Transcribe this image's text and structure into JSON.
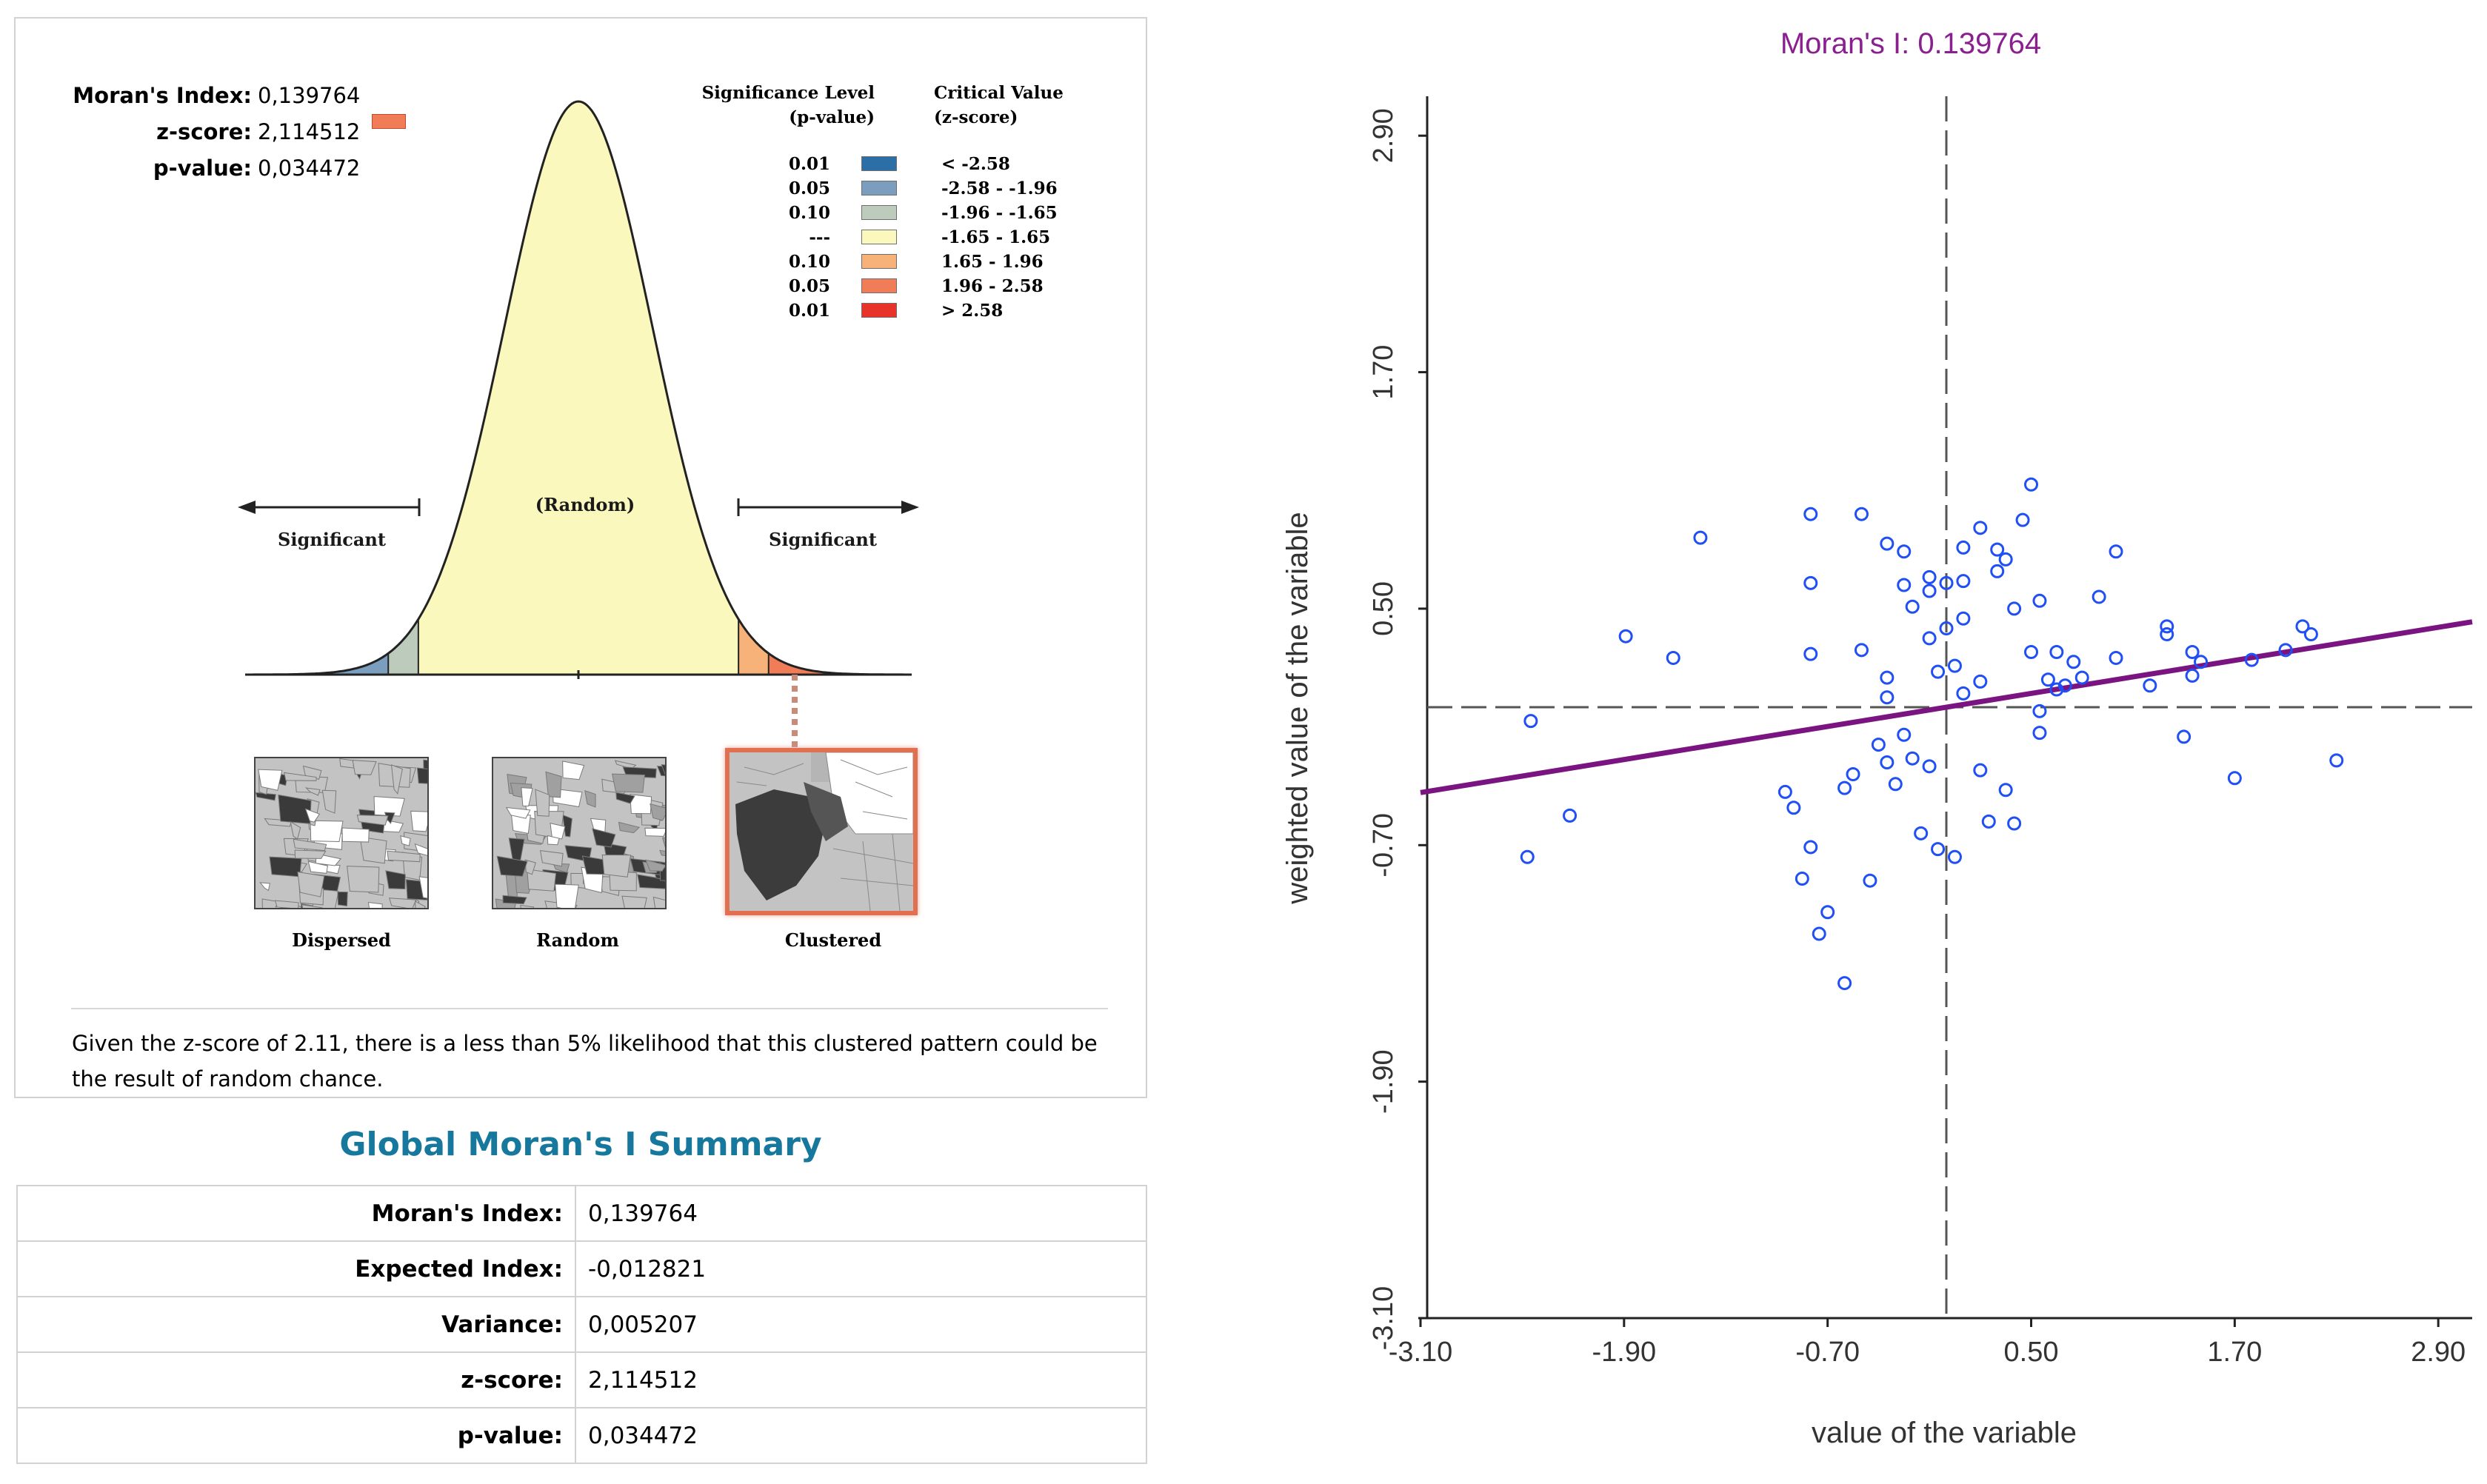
{
  "report": {
    "stats": [
      {
        "label": "Moran's Index:",
        "value": "0,139764"
      },
      {
        "label": "z-score:",
        "value": "2,114512"
      },
      {
        "label": "p-value:",
        "value": "0,034472"
      }
    ],
    "zscore_marker_color": "#f07d57",
    "legend": {
      "significance_header_1": "Significance Level",
      "significance_header_2": "(p-value)",
      "critical_header_1": "Critical Value",
      "critical_header_2": "(z-score)",
      "rows": [
        {
          "p": "0.01",
          "z": "< -2.58",
          "color": "#2c6fa6"
        },
        {
          "p": "0.05",
          "z": "-2.58 - -1.96",
          "color": "#7b9ebf"
        },
        {
          "p": "0.10",
          "z": "-1.96 - -1.65",
          "color": "#bccbbb"
        },
        {
          "p": "---",
          "z": "-1.65 - 1.65",
          "color": "#fbf8be"
        },
        {
          "p": "0.10",
          "z": "1.65 - 1.96",
          "color": "#f7b27a"
        },
        {
          "p": "0.05",
          "z": "1.96 - 2.58",
          "color": "#f07d57"
        },
        {
          "p": "0.01",
          "z": "> 2.58",
          "color": "#e8332a"
        }
      ]
    },
    "curve_labels": {
      "random": "(Random)",
      "significant_left": "Significant",
      "significant_right": "Significant"
    },
    "maps": [
      {
        "caption": "Dispersed"
      },
      {
        "caption": "Random"
      },
      {
        "caption": "Clustered"
      }
    ],
    "interpretation": "Given the z-score of 2.11, there is a less than 5% likelihood that this clustered pattern could be the result of random chance."
  },
  "summary": {
    "title": "Global Moran's I Summary",
    "rows": [
      {
        "label": "Moran's Index:",
        "value": "0,139764"
      },
      {
        "label": "Expected Index:",
        "value": "-0,012821"
      },
      {
        "label": "Variance:",
        "value": "0,005207"
      },
      {
        "label": "z-score:",
        "value": "2,114512"
      },
      {
        "label": "p-value:",
        "value": "0,034472"
      }
    ]
  },
  "chart_data": {
    "type": "scatter",
    "title": "Moran's I: 0.139764",
    "xlabel": "value of the variable",
    "ylabel": "weighted value of the variable",
    "xlim": [
      -3.1,
      3.1
    ],
    "ylim": [
      -3.1,
      3.1
    ],
    "xticks": [
      -3.1,
      -1.9,
      -0.7,
      0.5,
      1.7,
      2.9
    ],
    "yticks": [
      -3.1,
      -1.9,
      -0.7,
      0.5,
      1.7,
      2.9
    ],
    "xtick_labels": [
      "-3.10",
      "-1.90",
      "-0.70",
      "0.50",
      "1.70",
      "2.90"
    ],
    "ytick_labels": [
      "-3.10",
      "-1.90",
      "-0.70",
      "0.50",
      "1.70",
      "2.90"
    ],
    "reference_x": 0.0,
    "reference_y": 0.0,
    "regression": {
      "slope": 0.139764,
      "intercept": 0.0
    },
    "point_color": "#1f4ff5",
    "line_color": "#7a1480",
    "x": [
      -2.47,
      -2.45,
      -2.22,
      -1.89,
      -1.61,
      -1.45,
      -0.8,
      -0.8,
      -0.8,
      -0.5,
      -0.5,
      -0.35,
      -0.35,
      -0.35,
      -0.25,
      -0.25,
      -0.25,
      -0.2,
      -0.1,
      -0.1,
      -0.1,
      0.0,
      0.0,
      0.1,
      0.1,
      0.1,
      0.1,
      0.2,
      0.2,
      0.3,
      0.3,
      0.35,
      0.4,
      0.45,
      0.5,
      0.5,
      0.55,
      0.55,
      0.6,
      0.65,
      0.65,
      0.75,
      0.8,
      0.9,
      1.0,
      1.2,
      1.3,
      1.3,
      1.4,
      1.45,
      1.5,
      1.7,
      2.0,
      2.1,
      2.15,
      2.3,
      -0.95,
      -0.9,
      -0.8,
      -0.85,
      -0.7,
      -0.75,
      -0.6,
      -0.55,
      -0.4,
      -0.35,
      -0.3,
      -0.2,
      -0.15,
      -0.05,
      0.05,
      -0.1,
      0.2,
      0.35,
      0.4,
      0.55,
      0.05,
      -0.05,
      0.7,
      1.0,
      1.45,
      1.8,
      0.25,
      -0.45,
      -0.6
    ],
    "y": [
      -0.76,
      -0.07,
      -0.55,
      0.36,
      0.25,
      0.86,
      0.63,
      0.98,
      0.27,
      0.98,
      0.29,
      0.83,
      0.05,
      0.15,
      -0.14,
      0.79,
      0.62,
      0.51,
      0.59,
      0.66,
      0.35,
      0.63,
      0.4,
      0.64,
      0.45,
      0.81,
      0.07,
      0.91,
      0.13,
      0.8,
      0.69,
      0.75,
      0.5,
      0.95,
      1.13,
      0.28,
      0.54,
      -0.13,
      0.14,
      0.28,
      0.09,
      0.23,
      0.15,
      0.56,
      0.79,
      0.11,
      0.41,
      0.37,
      -0.15,
      0.28,
      0.23,
      -0.36,
      0.29,
      0.41,
      0.37,
      -0.27,
      -0.43,
      -0.51,
      -0.71,
      -0.87,
      -1.04,
      -1.15,
      -0.41,
      -0.34,
      -0.19,
      -0.28,
      -0.39,
      -0.26,
      -0.64,
      -0.72,
      -0.76,
      -0.3,
      -0.32,
      -0.42,
      -0.59,
      -0.02,
      0.21,
      0.18,
      0.11,
      0.25,
      0.16,
      0.24,
      -0.58,
      -0.88,
      -1.4
    ]
  }
}
